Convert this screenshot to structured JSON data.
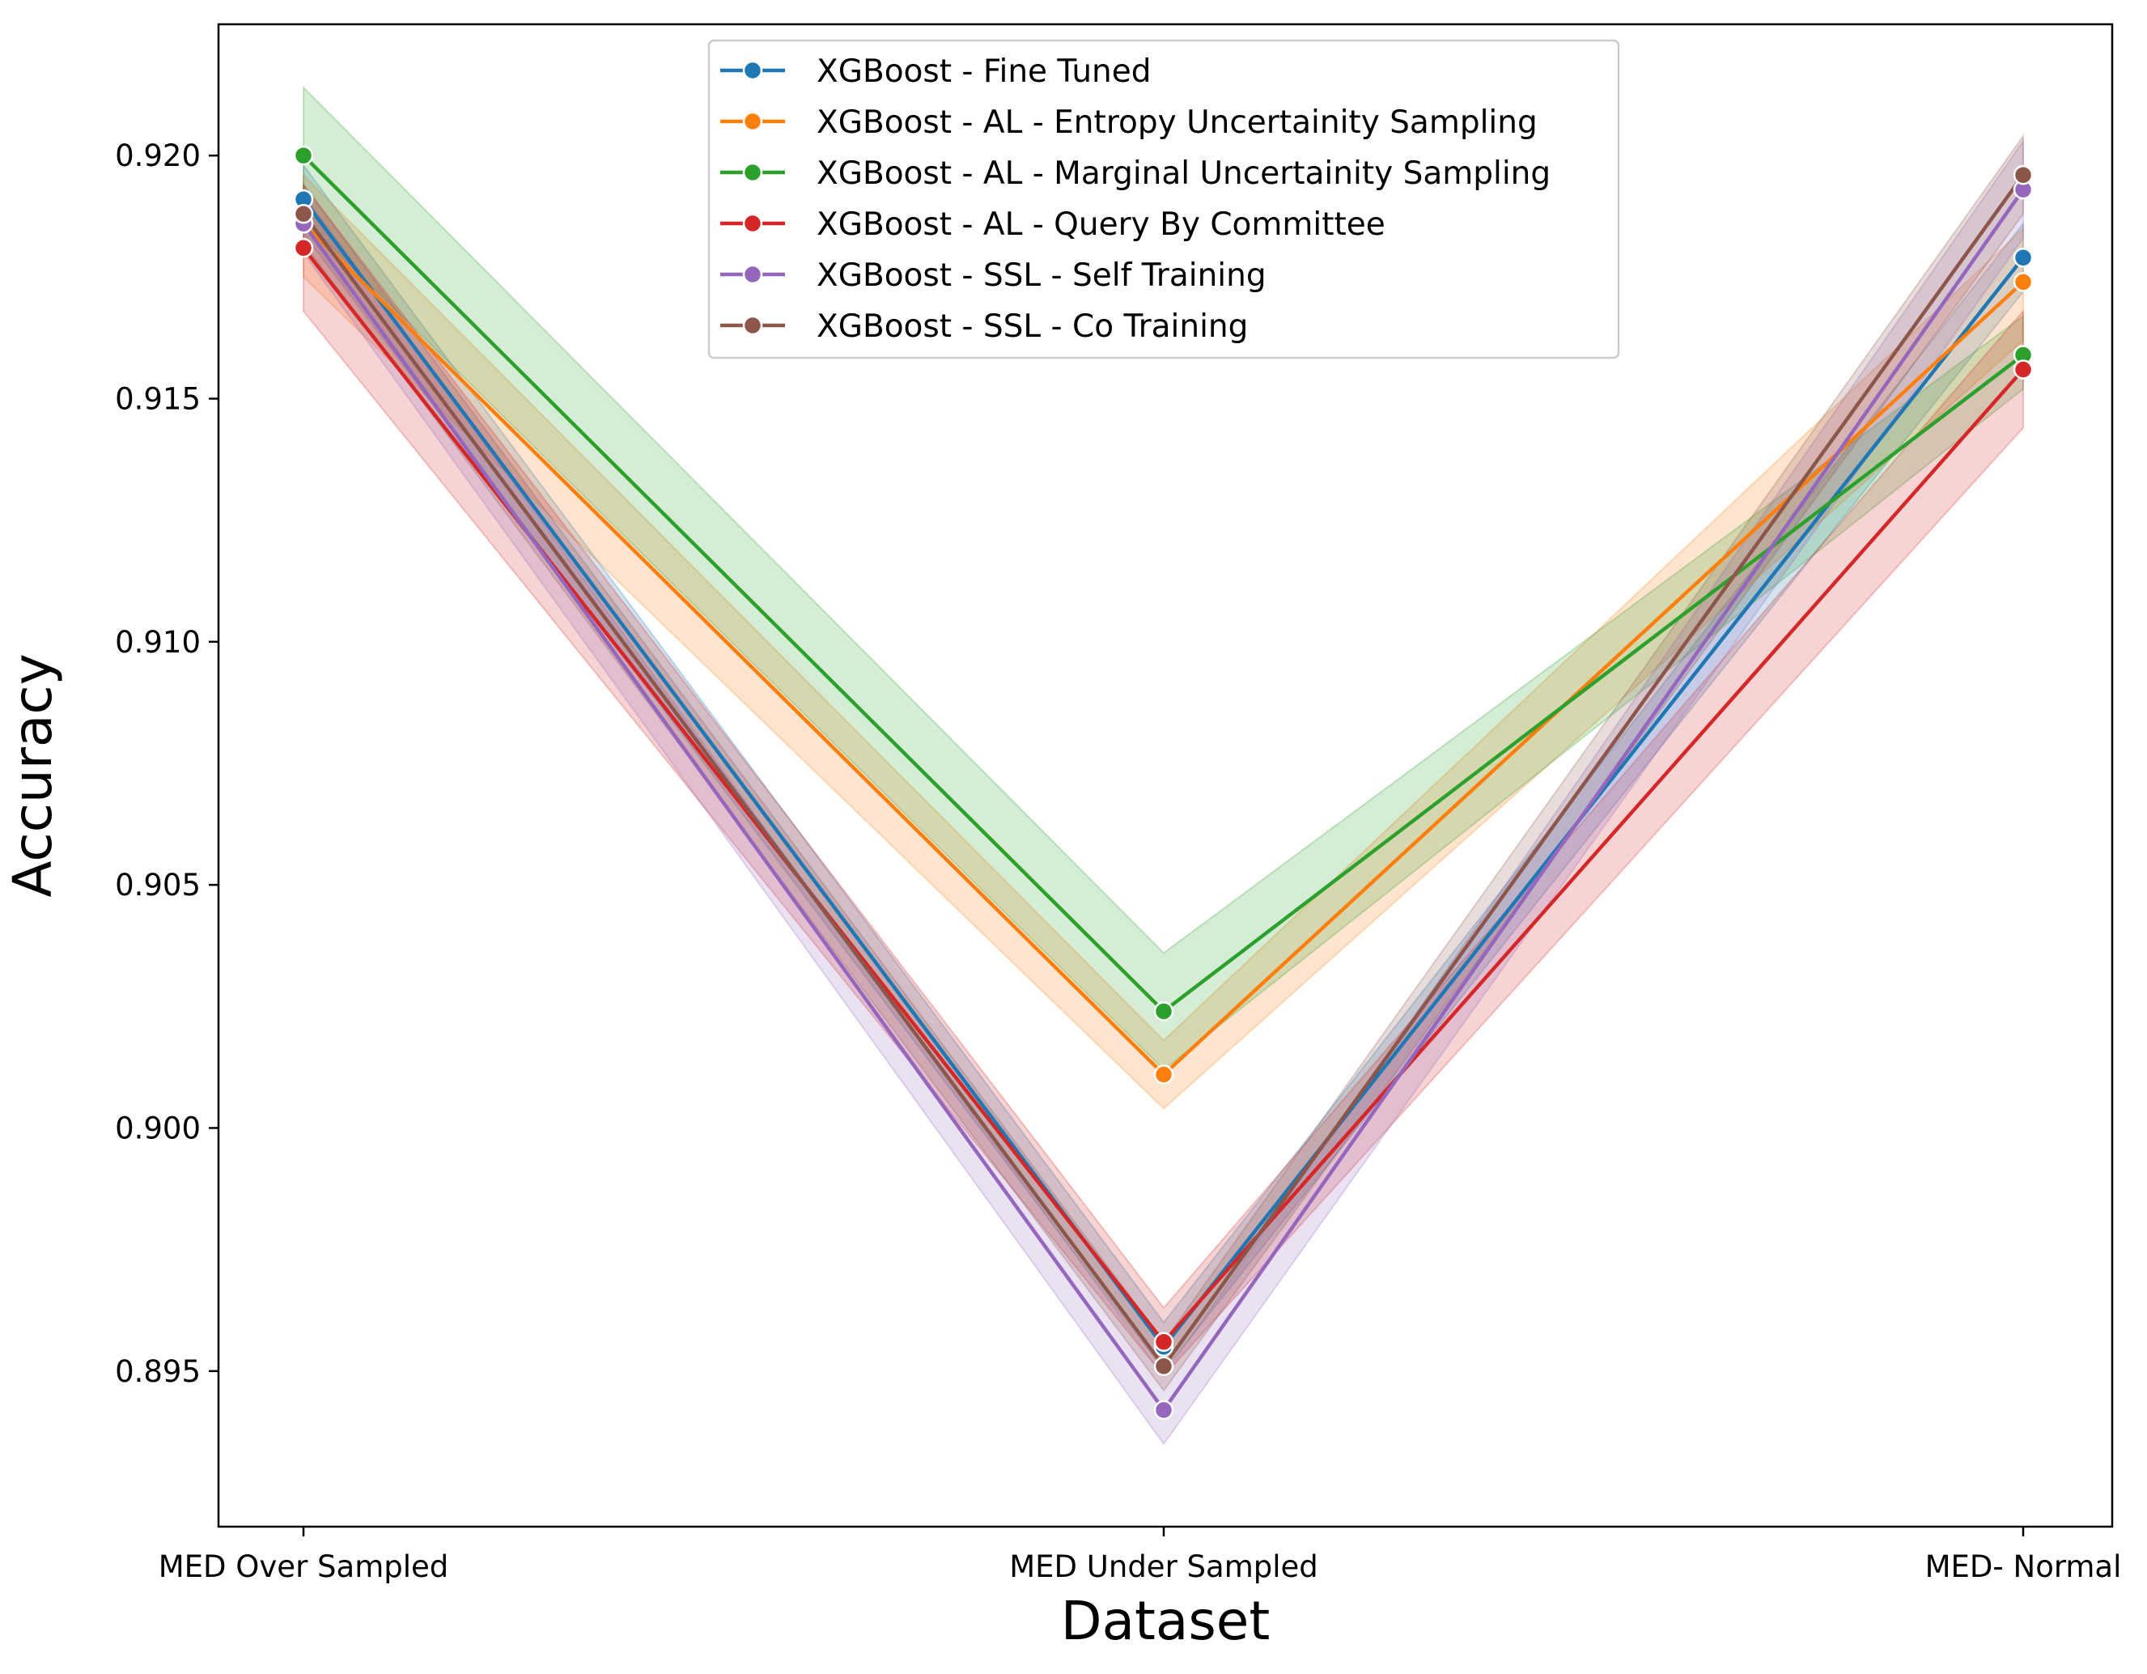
{
  "chart_data": {
    "type": "line",
    "title": "",
    "xlabel": "Dataset",
    "ylabel": "Accuracy",
    "categories": [
      "MED Over Sampled",
      "MED Under Sampled",
      "MED- Normal"
    ],
    "ylim": [
      0.8918,
      0.9227
    ],
    "yticks": [
      "0.895",
      "0.900",
      "0.905",
      "0.910",
      "0.915",
      "0.920"
    ],
    "ytick_values": [
      0.895,
      0.9,
      0.905,
      0.91,
      0.915,
      0.92
    ],
    "grid": false,
    "legend": "top-center",
    "series": [
      {
        "name": "XGBoost - Fine Tuned",
        "color": "#1f77b4",
        "values": [
          0.9191,
          0.8955,
          0.9179
        ],
        "lower": [
          0.9184,
          0.895,
          0.9172
        ],
        "upper": [
          0.9198,
          0.896,
          0.9186
        ]
      },
      {
        "name": "XGBoost - AL - Entropy Uncertainity Sampling",
        "color": "#ff7f0e",
        "values": [
          0.9186,
          0.9011,
          0.9174
        ],
        "lower": [
          0.9175,
          0.9004,
          0.9162
        ],
        "upper": [
          0.9196,
          0.9018,
          0.9185
        ]
      },
      {
        "name": "XGBoost - AL - Marginal Uncertainity Sampling",
        "color": "#2ca02c",
        "values": [
          0.92,
          0.9024,
          0.9159
        ],
        "lower": [
          0.9187,
          0.9012,
          0.9152
        ],
        "upper": [
          0.9214,
          0.9036,
          0.9167
        ]
      },
      {
        "name": "XGBoost - AL - Query By Committee",
        "color": "#d62728",
        "values": [
          0.9181,
          0.8956,
          0.9156
        ],
        "lower": [
          0.9168,
          0.8949,
          0.9144
        ],
        "upper": [
          0.9194,
          0.8963,
          0.9168
        ]
      },
      {
        "name": "XGBoost - SSL - Self Training",
        "color": "#9467bd",
        "values": [
          0.9186,
          0.8942,
          0.9193
        ],
        "lower": [
          0.918,
          0.8935,
          0.9183
        ],
        "upper": [
          0.9192,
          0.8949,
          0.9203
        ]
      },
      {
        "name": "XGBoost - SSL - Co Training",
        "color": "#8c564b",
        "values": [
          0.9188,
          0.8951,
          0.9196
        ],
        "lower": [
          0.9182,
          0.8946,
          0.9188
        ],
        "upper": [
          0.9194,
          0.8956,
          0.9204
        ]
      }
    ]
  }
}
